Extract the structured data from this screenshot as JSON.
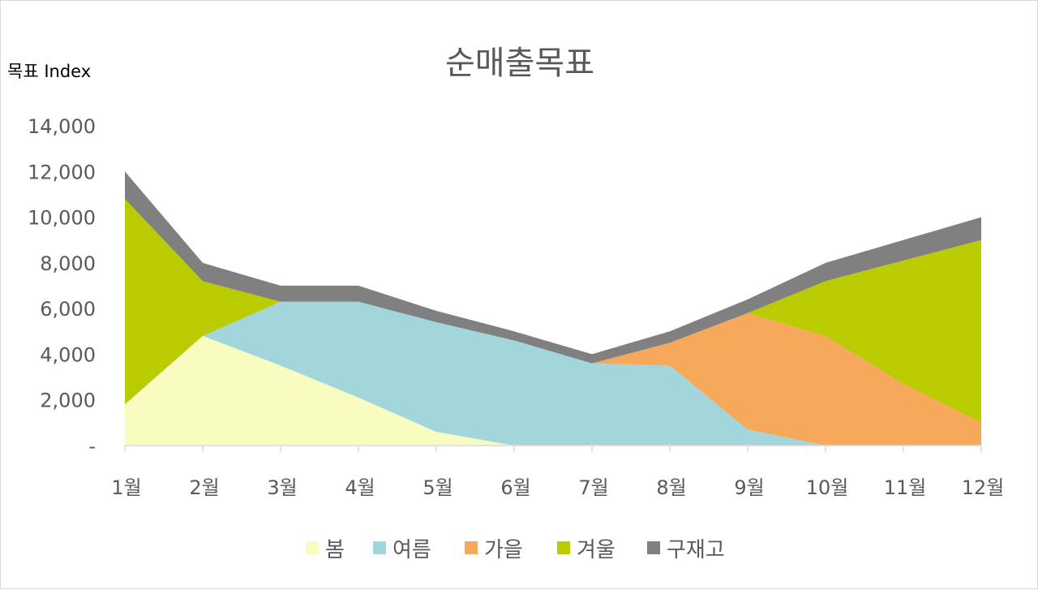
{
  "chart_data": {
    "type": "area",
    "stacked": true,
    "title": "순매출목표",
    "ylabel": "목표 Index",
    "xlabel": "",
    "categories": [
      "1월",
      "2월",
      "3월",
      "4월",
      "5월",
      "6월",
      "7월",
      "8월",
      "9월",
      "10월",
      "11월",
      "12월"
    ],
    "ylim": [
      0,
      14000
    ],
    "yticks": [
      0,
      2000,
      4000,
      6000,
      8000,
      10000,
      12000,
      14000
    ],
    "ytick_labels": [
      "-",
      "2,000",
      "4,000",
      "6,000",
      "8,000",
      "10,000",
      "12,000",
      "14,000"
    ],
    "grid": false,
    "legend_position": "bottom",
    "series": [
      {
        "name": "봄",
        "color": "#f8fcc1",
        "values": [
          1800,
          4800,
          3500,
          2100,
          600,
          0,
          0,
          0,
          0,
          0,
          0,
          0
        ]
      },
      {
        "name": "여름",
        "color": "#a3d6da",
        "values": [
          0,
          0,
          2800,
          4200,
          4800,
          4600,
          3600,
          3500,
          700,
          0,
          0,
          0
        ]
      },
      {
        "name": "가을",
        "color": "#f6a95a",
        "values": [
          0,
          0,
          0,
          0,
          0,
          0,
          0,
          1000,
          5100,
          4800,
          2700,
          1000
        ]
      },
      {
        "name": "겨울",
        "color": "#bacb02",
        "values": [
          9000,
          2400,
          0,
          0,
          0,
          0,
          0,
          0,
          0,
          2400,
          5400,
          8000
        ]
      },
      {
        "name": "구재고",
        "color": "#808080",
        "values": [
          1200,
          800,
          700,
          700,
          500,
          400,
          400,
          500,
          600,
          800,
          900,
          1000
        ]
      }
    ]
  }
}
